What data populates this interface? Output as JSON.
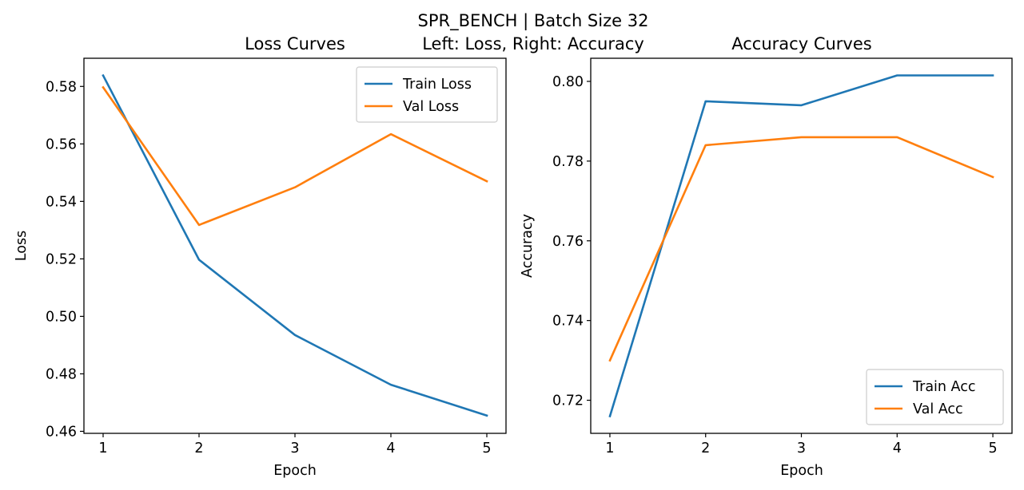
{
  "figure": {
    "suptitle_line1": "SPR_BENCH | Batch Size 32",
    "suptitle_line2": "Left: Loss, Right: Accuracy"
  },
  "chart_data": [
    {
      "type": "line",
      "title": "Loss Curves",
      "xlabel": "Epoch",
      "ylabel": "Loss",
      "x": [
        1,
        2,
        3,
        4,
        5
      ],
      "xticks": [
        "1",
        "2",
        "3",
        "4",
        "5"
      ],
      "yticks": [
        0.46,
        0.48,
        0.5,
        0.52,
        0.54,
        0.56,
        0.58
      ],
      "ytick_labels": [
        "0.46",
        "0.48",
        "0.50",
        "0.52",
        "0.54",
        "0.56",
        "0.58"
      ],
      "xlim": [
        0.8,
        5.2
      ],
      "ylim": [
        0.4593,
        0.5898
      ],
      "grid": false,
      "legend_position": "upper right",
      "series": [
        {
          "name": "Train Loss",
          "color": "#1f77b4",
          "values": [
            0.5838,
            0.5197,
            0.4935,
            0.4762,
            0.4655
          ]
        },
        {
          "name": "Val Loss",
          "color": "#ff7f0e",
          "values": [
            0.5797,
            0.5318,
            0.5449,
            0.5634,
            0.547
          ]
        }
      ]
    },
    {
      "type": "line",
      "title": "Accuracy Curves",
      "xlabel": "Epoch",
      "ylabel": "Accuracy",
      "x": [
        1,
        2,
        3,
        4,
        5
      ],
      "xticks": [
        "1",
        "2",
        "3",
        "4",
        "5"
      ],
      "yticks": [
        0.72,
        0.74,
        0.76,
        0.78,
        0.8
      ],
      "ytick_labels": [
        "0.72",
        "0.74",
        "0.76",
        "0.78",
        "0.80"
      ],
      "xlim": [
        0.8,
        5.2
      ],
      "ylim": [
        0.7117,
        0.8058
      ],
      "grid": false,
      "legend_position": "lower right",
      "series": [
        {
          "name": "Train Acc",
          "color": "#1f77b4",
          "values": [
            0.716,
            0.795,
            0.794,
            0.8015,
            0.8015
          ]
        },
        {
          "name": "Val Acc",
          "color": "#ff7f0e",
          "values": [
            0.73,
            0.784,
            0.786,
            0.786,
            0.776
          ]
        }
      ]
    }
  ]
}
